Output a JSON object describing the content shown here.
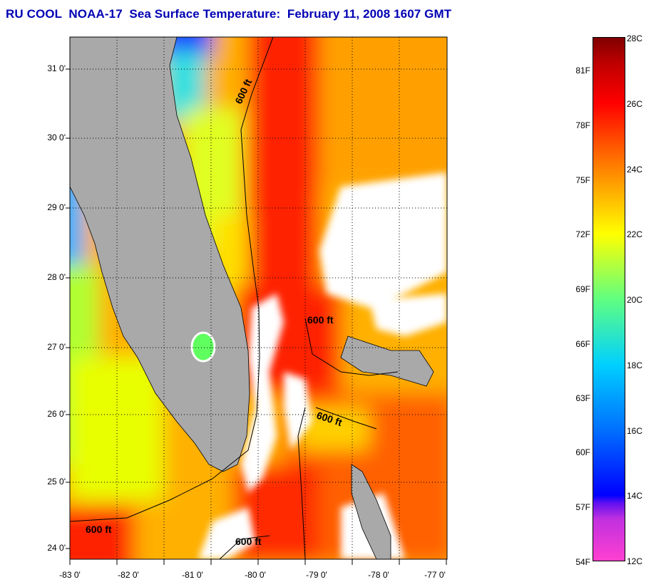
{
  "title": "RU COOL  NOAA-17  Sea Surface Temperature:  February 11, 2008 1607 GMT",
  "map": {
    "latitude_labels": [
      "31 0'",
      "30 0'",
      "29 0'",
      "28 0'",
      "27 0'",
      "26 0'",
      "25 0'",
      "24 0'"
    ],
    "longitude_labels": [
      "-83 0'",
      "-82 0'",
      "-81 0'",
      "-80 0'",
      "-79 0'",
      "-78 0'",
      "-77 0'"
    ],
    "contour_labels": [
      "600 ft",
      "600 ft",
      "600 ft",
      "600 ft",
      "600 ft"
    ],
    "colors": {
      "land": "#a9a9a9",
      "cloud": "#ffffff",
      "gulf_stream": "#ff1a00"
    }
  },
  "colorbar": {
    "fahrenheit_labels": [
      "81F",
      "78F",
      "75F",
      "72F",
      "69F",
      "66F",
      "63F",
      "60F",
      "57F",
      "54F"
    ],
    "celsius_labels": [
      "28C",
      "26C",
      "24C",
      "22C",
      "20C",
      "18C",
      "16C",
      "14C",
      "12C"
    ]
  }
}
